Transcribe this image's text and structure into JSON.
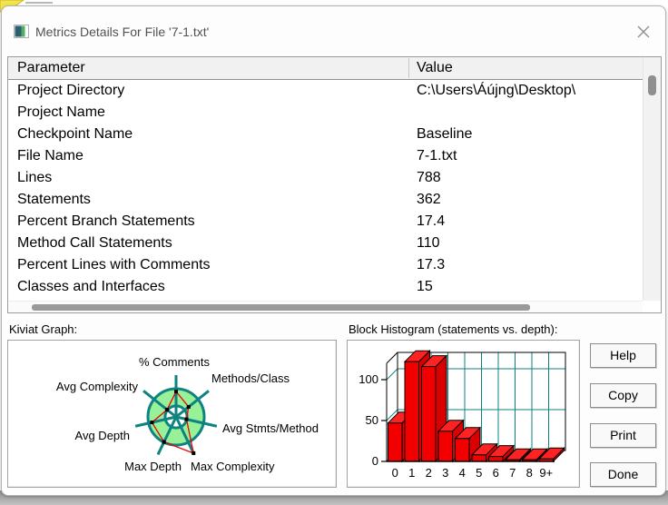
{
  "window": {
    "title": "Metrics Details For File '7-1.txt'"
  },
  "table": {
    "columns": [
      "Parameter",
      "Value"
    ],
    "rows": [
      [
        "Project Directory",
        "C:\\Users\\Áújng\\Desktop\\"
      ],
      [
        "Project Name",
        ""
      ],
      [
        "Checkpoint Name",
        "Baseline"
      ],
      [
        "File Name",
        "7-1.txt"
      ],
      [
        "Lines",
        "788"
      ],
      [
        "Statements",
        "362"
      ],
      [
        "Percent Branch Statements",
        "17.4"
      ],
      [
        "Method Call Statements",
        "110"
      ],
      [
        "Percent Lines with Comments",
        "17.3"
      ],
      [
        "Classes and Interfaces",
        "15"
      ]
    ]
  },
  "sections": {
    "kiviat_label": "Kiviat Graph:",
    "histogram_label": "Block Histogram (statements vs. depth):"
  },
  "buttons": {
    "help": "Help",
    "copy": "Copy",
    "print": "Print",
    "done": "Done"
  },
  "chart_data": [
    {
      "type": "radar",
      "title": "Kiviat Graph",
      "axes": [
        "% Comments",
        "Methods/Class",
        "Avg Stmts/Method",
        "Max Complexity",
        "Max Depth",
        "Avg Depth",
        "Avg Complexity"
      ],
      "values_fraction_of_outer_circle": [
        0.9,
        0.57,
        0.38,
        1.43,
        0.99,
        0.88,
        0.41
      ],
      "ring": {
        "inner_radius_fraction": 0.39,
        "fill": "#98f098",
        "axis_color": "#0f8282"
      },
      "series_color": "#e80000",
      "marker_color": "#000000"
    },
    {
      "type": "bar",
      "title": "Block Histogram (statements vs. depth)",
      "categories": [
        "0",
        "1",
        "2",
        "3",
        "4",
        "5",
        "6",
        "7",
        "8",
        "9+"
      ],
      "values": [
        47,
        122,
        116,
        37,
        28,
        8,
        6,
        2,
        2,
        3
      ],
      "xlabel": "depth",
      "ylabel": "statements",
      "yticks": [
        0,
        50,
        100
      ],
      "ylim": [
        0,
        130
      ],
      "style": "3d",
      "bar_color": "#f20000",
      "bar_top_color": "#ff2222",
      "bar_side_color": "#d80000",
      "grid_color": "#0f8080",
      "grid": true,
      "legend": false
    }
  ]
}
